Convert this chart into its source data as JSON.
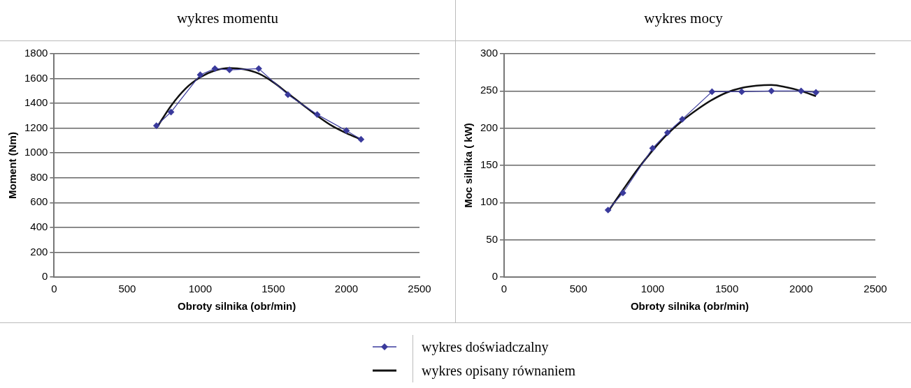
{
  "chart_data": [
    {
      "type": "line",
      "title": "wykres momentu",
      "xlabel": "Obroty silnika (obr/min)",
      "ylabel": "Moment (Nm)",
      "xlim": [
        0,
        2500
      ],
      "xticks": [
        0,
        500,
        1000,
        1500,
        2000,
        2500
      ],
      "ylim": [
        0,
        1800
      ],
      "yticks": [
        0,
        200,
        400,
        600,
        800,
        1000,
        1200,
        1400,
        1600,
        1800
      ],
      "grid": "y",
      "legend": "bottom",
      "series": [
        {
          "name": "wykres doświadczalny",
          "color": "#3a3a9c",
          "marker": "diamond",
          "x": [
            700,
            800,
            1000,
            1100,
            1200,
            1400,
            1600,
            1800,
            2000,
            2100
          ],
          "values": [
            1220,
            1330,
            1630,
            1680,
            1670,
            1680,
            1470,
            1310,
            1180,
            1110
          ]
        },
        {
          "name": "wykres opisany równaniem",
          "color": "#111111",
          "marker": "none",
          "x": [
            700,
            800,
            900,
            1000,
            1100,
            1200,
            1300,
            1400,
            1500,
            1600,
            1700,
            1800,
            1900,
            2000,
            2100
          ],
          "values": [
            1200,
            1380,
            1520,
            1610,
            1665,
            1685,
            1675,
            1640,
            1570,
            1480,
            1390,
            1300,
            1220,
            1160,
            1110
          ]
        }
      ]
    },
    {
      "type": "line",
      "title": "wykres mocy",
      "xlabel": "Obroty silnika (obr/min)",
      "ylabel": "Moc silnika ( kW)",
      "xlim": [
        0,
        2500
      ],
      "xticks": [
        0,
        500,
        1000,
        1500,
        2000,
        2500
      ],
      "ylim": [
        0,
        300
      ],
      "yticks": [
        0,
        50,
        100,
        150,
        200,
        250,
        300
      ],
      "grid": "y",
      "series": [
        {
          "color": "#3a3a9c",
          "marker": "diamond",
          "x": [
            700,
            800,
            1000,
            1100,
            1200,
            1400,
            1600,
            1800,
            2000,
            2100
          ],
          "values": [
            90,
            113,
            173,
            194,
            212,
            249,
            249,
            250,
            250,
            248
          ]
        },
        {
          "color": "#111111",
          "marker": "none",
          "x": [
            700,
            800,
            900,
            1000,
            1100,
            1200,
            1300,
            1400,
            1500,
            1600,
            1700,
            1800,
            1900,
            2000,
            2100
          ],
          "values": [
            88,
            117,
            145,
            170,
            192,
            210,
            225,
            238,
            248,
            254,
            257,
            258,
            255,
            250,
            243
          ]
        }
      ]
    }
  ]
}
